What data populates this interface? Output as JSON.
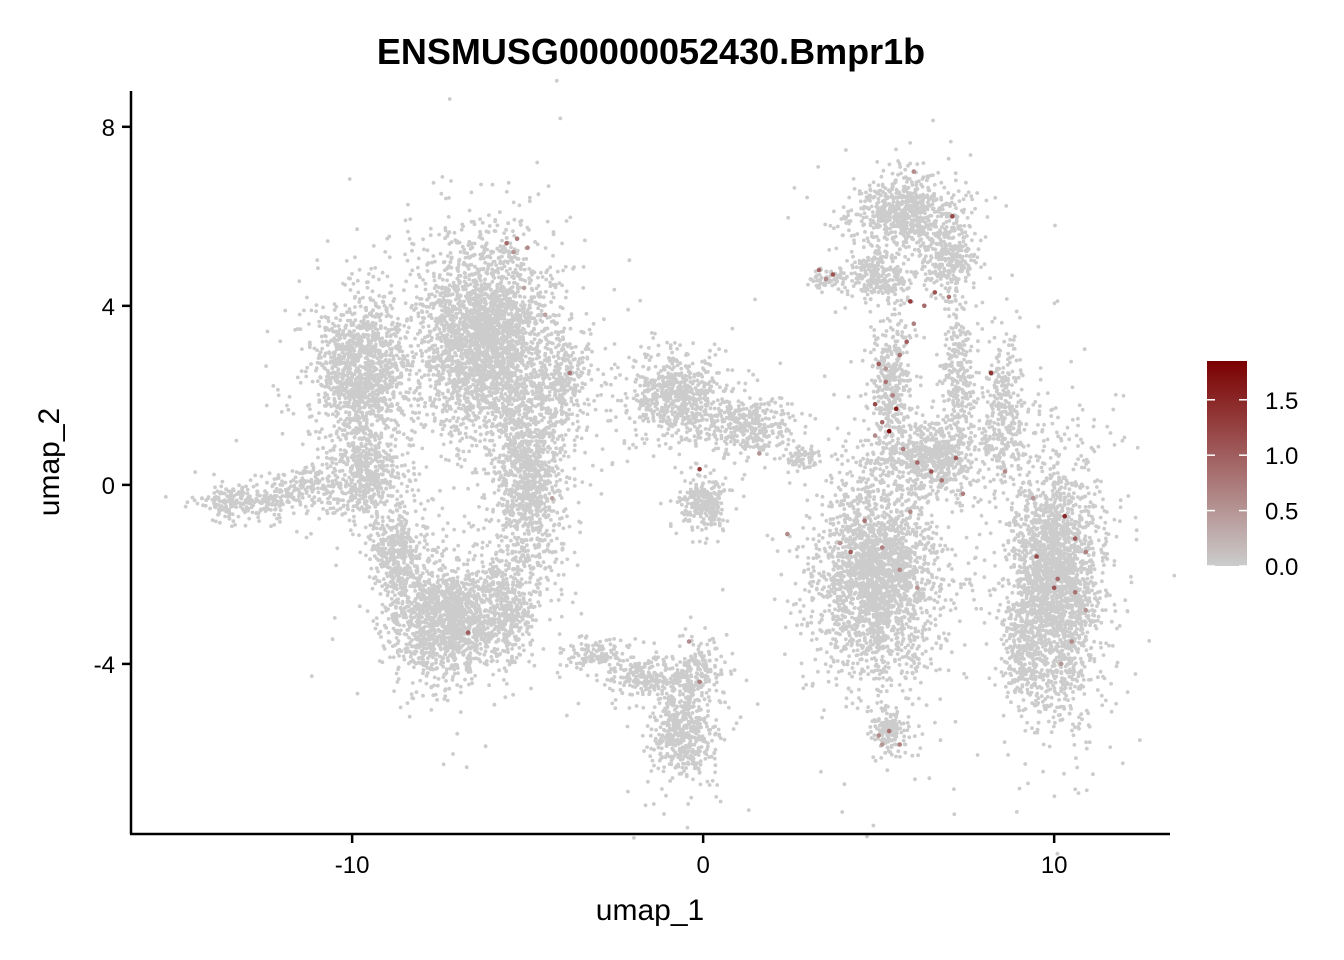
{
  "chart_data": {
    "type": "scatter",
    "title": "ENSMUSG00000052430.Bmpr1b",
    "xlabel": "umap_1",
    "ylabel": "umap_2",
    "xlim": [
      -16.3,
      13.3
    ],
    "ylim": [
      -7.8,
      8.8
    ],
    "x_ticks": [
      {
        "value": -10,
        "label": "-10"
      },
      {
        "value": 0,
        "label": "0"
      },
      {
        "value": 10,
        "label": "10"
      }
    ],
    "y_ticks": [
      {
        "value": -4,
        "label": "-4"
      },
      {
        "value": 0,
        "label": "0"
      },
      {
        "value": 4,
        "label": "4"
      },
      {
        "value": 8,
        "label": "8"
      }
    ],
    "grid": false,
    "color_scale": {
      "low_color": "#CCCCCC",
      "high_color": "#7B0000",
      "min": 0.0,
      "max": 1.85,
      "ticks": [
        {
          "value": 0.0,
          "label": "0.0"
        },
        {
          "value": 0.5,
          "label": "0.5"
        },
        {
          "value": 1.0,
          "label": "1.0"
        },
        {
          "value": 1.5,
          "label": "1.5"
        }
      ],
      "legend_position": "right"
    },
    "background_clusters": [
      {
        "cx": -13.0,
        "cy": -0.35,
        "rx": 1.2,
        "ry": 0.35,
        "n": 260
      },
      {
        "cx": -11.2,
        "cy": 0.0,
        "rx": 0.9,
        "ry": 0.45,
        "n": 160
      },
      {
        "cx": -9.7,
        "cy": 2.5,
        "rx": 1.2,
        "ry": 1.5,
        "n": 1300
      },
      {
        "cx": -9.6,
        "cy": 0.2,
        "rx": 0.9,
        "ry": 1.0,
        "n": 500
      },
      {
        "cx": -8.7,
        "cy": -1.6,
        "rx": 0.6,
        "ry": 0.9,
        "n": 350
      },
      {
        "cx": -7.3,
        "cy": -3.0,
        "rx": 1.4,
        "ry": 1.1,
        "n": 1500
      },
      {
        "cx": -6.2,
        "cy": 3.2,
        "rx": 1.6,
        "ry": 1.9,
        "n": 2800
      },
      {
        "cx": -5.0,
        "cy": 0.2,
        "rx": 0.9,
        "ry": 2.0,
        "n": 1100
      },
      {
        "cx": -5.6,
        "cy": -2.7,
        "rx": 0.8,
        "ry": 1.0,
        "n": 400
      },
      {
        "cx": -3.9,
        "cy": 2.3,
        "rx": 0.6,
        "ry": 1.0,
        "n": 250
      },
      {
        "cx": -3.0,
        "cy": -3.8,
        "rx": 0.9,
        "ry": 0.3,
        "n": 130
      },
      {
        "cx": -1.6,
        "cy": -4.3,
        "rx": 0.9,
        "ry": 0.4,
        "n": 220
      },
      {
        "cx": -0.6,
        "cy": -5.5,
        "rx": 0.8,
        "ry": 0.9,
        "n": 550
      },
      {
        "cx": -0.2,
        "cy": -4.2,
        "rx": 0.6,
        "ry": 0.6,
        "n": 180
      },
      {
        "cx": -0.8,
        "cy": 2.0,
        "rx": 1.2,
        "ry": 0.8,
        "n": 650
      },
      {
        "cx": 1.2,
        "cy": 1.3,
        "rx": 1.2,
        "ry": 0.5,
        "n": 380
      },
      {
        "cx": 2.8,
        "cy": 0.6,
        "rx": 0.5,
        "ry": 0.3,
        "n": 70
      },
      {
        "cx": 0.0,
        "cy": -0.4,
        "rx": 0.6,
        "ry": 0.5,
        "n": 260
      },
      {
        "cx": 3.6,
        "cy": 4.6,
        "rx": 0.5,
        "ry": 0.2,
        "n": 70
      },
      {
        "cx": 5.7,
        "cy": 6.1,
        "rx": 1.3,
        "ry": 0.7,
        "n": 700
      },
      {
        "cx": 5.0,
        "cy": 4.7,
        "rx": 0.9,
        "ry": 0.5,
        "n": 260
      },
      {
        "cx": 7.0,
        "cy": 5.1,
        "rx": 0.6,
        "ry": 0.7,
        "n": 300
      },
      {
        "cx": 5.4,
        "cy": 2.3,
        "rx": 0.5,
        "ry": 1.4,
        "n": 380
      },
      {
        "cx": 7.3,
        "cy": 2.4,
        "rx": 0.4,
        "ry": 1.4,
        "n": 260
      },
      {
        "cx": 8.5,
        "cy": 1.5,
        "rx": 0.5,
        "ry": 1.4,
        "n": 320
      },
      {
        "cx": 6.5,
        "cy": 0.6,
        "rx": 1.2,
        "ry": 0.7,
        "n": 600
      },
      {
        "cx": 5.0,
        "cy": -2.0,
        "rx": 1.5,
        "ry": 2.0,
        "n": 2400
      },
      {
        "cx": 5.3,
        "cy": -5.5,
        "rx": 0.45,
        "ry": 0.45,
        "n": 150
      },
      {
        "cx": 9.0,
        "cy": -3.8,
        "rx": 0.4,
        "ry": 0.9,
        "n": 160
      },
      {
        "cx": 10.0,
        "cy": -2.2,
        "rx": 1.1,
        "ry": 2.4,
        "n": 2500
      }
    ],
    "highlighted_cells": [
      {
        "x": -5.6,
        "y": 5.4,
        "value": 0.9
      },
      {
        "x": -5.3,
        "y": 5.5,
        "value": 0.7
      },
      {
        "x": -5.0,
        "y": 5.3,
        "value": 0.6
      },
      {
        "x": -5.4,
        "y": 5.2,
        "value": 0.5
      },
      {
        "x": -3.8,
        "y": 2.5,
        "value": 0.8
      },
      {
        "x": -4.5,
        "y": 3.8,
        "value": 0.4
      },
      {
        "x": -6.7,
        "y": -3.3,
        "value": 1.0
      },
      {
        "x": -4.3,
        "y": -0.3,
        "value": 0.4
      },
      {
        "x": -5.1,
        "y": 4.4,
        "value": 0.4
      },
      {
        "x": -0.1,
        "y": 0.35,
        "value": 1.3
      },
      {
        "x": -0.4,
        "y": -3.5,
        "value": 0.6
      },
      {
        "x": -0.1,
        "y": -4.4,
        "value": 0.7
      },
      {
        "x": 1.6,
        "y": 0.7,
        "value": 0.5
      },
      {
        "x": 3.3,
        "y": 4.8,
        "value": 0.9
      },
      {
        "x": 3.7,
        "y": 4.7,
        "value": 1.1
      },
      {
        "x": 3.5,
        "y": 4.6,
        "value": 0.6
      },
      {
        "x": 5.0,
        "y": 2.7,
        "value": 1.0
      },
      {
        "x": 5.2,
        "y": 2.3,
        "value": 0.8
      },
      {
        "x": 4.9,
        "y": 1.8,
        "value": 1.2
      },
      {
        "x": 5.4,
        "y": 2.0,
        "value": 0.7
      },
      {
        "x": 5.1,
        "y": 1.4,
        "value": 0.9
      },
      {
        "x": 5.5,
        "y": 1.7,
        "value": 1.6
      },
      {
        "x": 5.3,
        "y": 1.2,
        "value": 1.8
      },
      {
        "x": 4.9,
        "y": 1.1,
        "value": 0.6
      },
      {
        "x": 5.6,
        "y": 2.9,
        "value": 0.8
      },
      {
        "x": 5.8,
        "y": 3.2,
        "value": 1.0
      },
      {
        "x": 6.0,
        "y": 3.6,
        "value": 0.7
      },
      {
        "x": 5.9,
        "y": 4.1,
        "value": 1.3
      },
      {
        "x": 6.3,
        "y": 4.0,
        "value": 0.9
      },
      {
        "x": 6.6,
        "y": 4.3,
        "value": 1.1
      },
      {
        "x": 7.0,
        "y": 4.2,
        "value": 0.8
      },
      {
        "x": 7.1,
        "y": 6.0,
        "value": 1.2
      },
      {
        "x": 6.0,
        "y": 7.0,
        "value": 0.6
      },
      {
        "x": 5.2,
        "y": 2.6,
        "value": 0.5
      },
      {
        "x": 5.7,
        "y": 0.8,
        "value": 0.7
      },
      {
        "x": 6.1,
        "y": 0.5,
        "value": 0.9
      },
      {
        "x": 6.5,
        "y": 0.3,
        "value": 1.1
      },
      {
        "x": 6.8,
        "y": 0.1,
        "value": 0.8
      },
      {
        "x": 7.2,
        "y": 0.6,
        "value": 1.0
      },
      {
        "x": 7.4,
        "y": -0.2,
        "value": 0.7
      },
      {
        "x": 5.9,
        "y": -0.6,
        "value": 0.6
      },
      {
        "x": 4.2,
        "y": -1.5,
        "value": 1.0
      },
      {
        "x": 4.6,
        "y": -0.8,
        "value": 0.8
      },
      {
        "x": 5.1,
        "y": -1.4,
        "value": 0.7
      },
      {
        "x": 3.9,
        "y": -1.3,
        "value": 0.5
      },
      {
        "x": 2.4,
        "y": -1.1,
        "value": 0.6
      },
      {
        "x": 5.6,
        "y": -1.9,
        "value": 0.6
      },
      {
        "x": 6.1,
        "y": -2.3,
        "value": 0.5
      },
      {
        "x": 8.2,
        "y": 2.5,
        "value": 1.4
      },
      {
        "x": 8.6,
        "y": 0.3,
        "value": 0.6
      },
      {
        "x": 9.4,
        "y": -0.3,
        "value": 0.5
      },
      {
        "x": 10.3,
        "y": -0.7,
        "value": 1.5
      },
      {
        "x": 10.6,
        "y": -1.2,
        "value": 1.0
      },
      {
        "x": 9.5,
        "y": -1.6,
        "value": 1.2
      },
      {
        "x": 10.1,
        "y": -2.1,
        "value": 0.9
      },
      {
        "x": 10.0,
        "y": -2.3,
        "value": 1.1
      },
      {
        "x": 10.6,
        "y": -2.4,
        "value": 0.8
      },
      {
        "x": 10.9,
        "y": -1.5,
        "value": 0.7
      },
      {
        "x": 10.5,
        "y": -3.5,
        "value": 0.6
      },
      {
        "x": 10.2,
        "y": -4.0,
        "value": 0.5
      },
      {
        "x": 10.9,
        "y": -2.8,
        "value": 0.5
      },
      {
        "x": 5.3,
        "y": -5.5,
        "value": 0.8
      },
      {
        "x": 5.0,
        "y": -5.6,
        "value": 0.6
      },
      {
        "x": 5.6,
        "y": -5.8,
        "value": 0.7
      },
      {
        "x": 5.1,
        "y": -5.8,
        "value": 0.5
      }
    ]
  }
}
